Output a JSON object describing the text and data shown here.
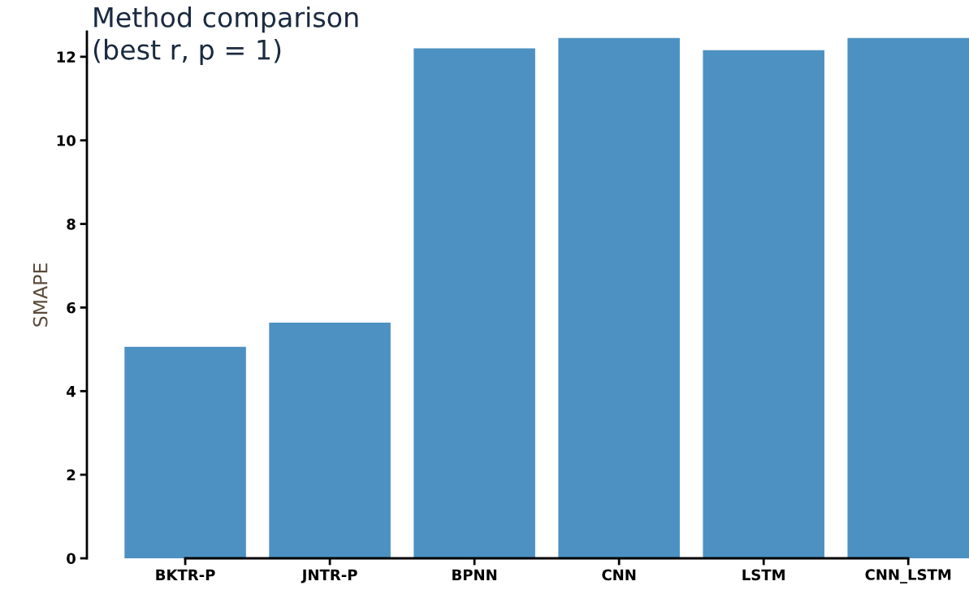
{
  "chart_data": {
    "type": "bar",
    "title": "Method comparison\n(best r, p = 1)",
    "ylabel": "SMAPE",
    "categories": [
      "BKTR-P",
      "JNTR-P",
      "BPNN",
      "CNN",
      "LSTM",
      "CNN_LSTM"
    ],
    "values": [
      5.06,
      5.64,
      12.2,
      12.45,
      12.16,
      12.45
    ],
    "color": "#4c91c2",
    "ylim": [
      0,
      12.6
    ],
    "yticks": [
      0,
      2,
      4,
      6,
      8,
      10,
      12
    ],
    "grid": false,
    "legend": false
  }
}
